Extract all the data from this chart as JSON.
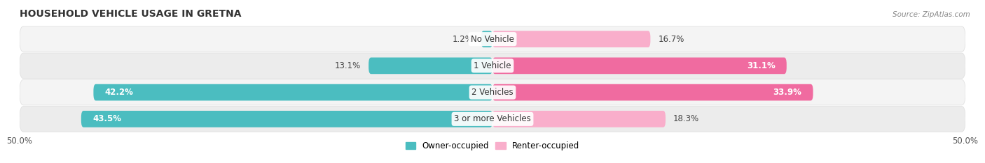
{
  "title": "HOUSEHOLD VEHICLE USAGE IN GRETNA",
  "source": "Source: ZipAtlas.com",
  "categories": [
    "No Vehicle",
    "1 Vehicle",
    "2 Vehicles",
    "3 or more Vehicles"
  ],
  "owner_values": [
    1.2,
    13.1,
    42.2,
    43.5
  ],
  "renter_values": [
    16.7,
    31.1,
    33.9,
    18.3
  ],
  "owner_color": "#4BBDC0",
  "renter_color": "#F06BA0",
  "renter_light_color": "#F9AECB",
  "owner_label": "Owner-occupied",
  "renter_label": "Renter-occupied",
  "xlim": [
    -50,
    50
  ],
  "background_color": "#FFFFFF",
  "bar_height": 0.62,
  "row_bg_light": "#F5F5F5",
  "row_bg_dark": "#EBEBEB"
}
